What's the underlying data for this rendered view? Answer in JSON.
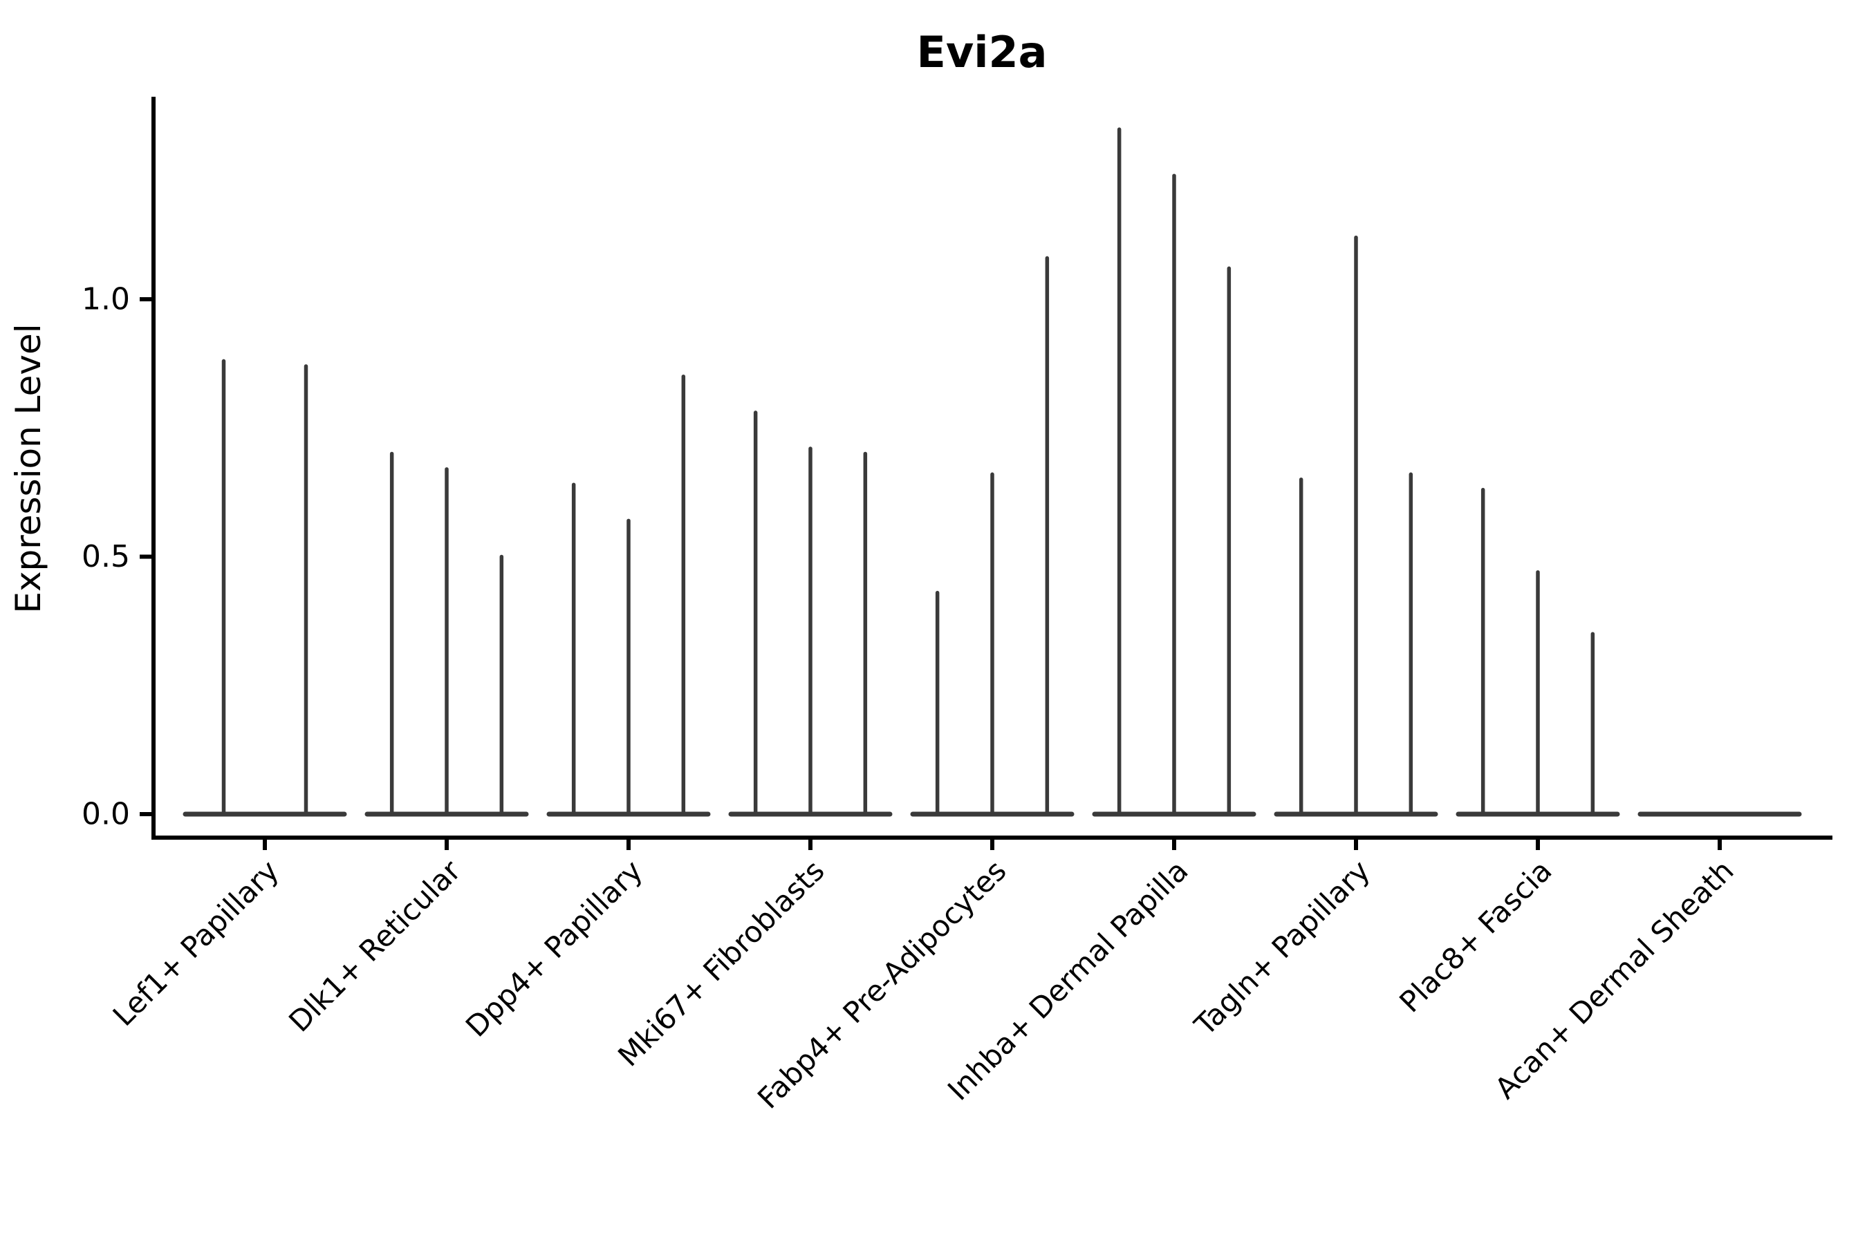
{
  "chart_data": {
    "type": "violin",
    "title": "Evi2a",
    "xlabel": "",
    "ylabel": "Expression Level",
    "ylim": [
      -0.05,
      1.39
    ],
    "yticks": [
      0.0,
      0.5,
      1.0
    ],
    "ytick_labels": [
      "0.0",
      "0.5",
      "1.0"
    ],
    "grid": false,
    "legend": "none",
    "x_tick_rotation_deg": 45,
    "violin_shape_note": "each violin is collapsed at 0 (flat body on baseline) with a thin vertical tail rising to its maximum expression value",
    "categories": [
      "Lef1+ Papillary",
      "Dlk1+ Reticular",
      "Dpp4+ Papillary",
      "Mki67+ Fibroblasts",
      "Fabp4+ Pre-Adipocytes",
      "Inhba+ Dermal Papilla",
      "Tagln+ Papillary",
      "Plac8+ Fascia",
      "Acan+ Dermal Sheath"
    ],
    "groups": [
      {
        "category": "Lef1+ Papillary",
        "violin_maxima": [
          0.88,
          0.87
        ]
      },
      {
        "category": "Dlk1+ Reticular",
        "violin_maxima": [
          0.7,
          0.67,
          0.5
        ]
      },
      {
        "category": "Dpp4+ Papillary",
        "violin_maxima": [
          0.64,
          0.57,
          0.85
        ]
      },
      {
        "category": "Mki67+ Fibroblasts",
        "violin_maxima": [
          0.78,
          0.71,
          0.7
        ]
      },
      {
        "category": "Fabp4+ Pre-Adipocytes",
        "violin_maxima": [
          0.43,
          0.66,
          1.08
        ]
      },
      {
        "category": "Inhba+ Dermal Papilla",
        "violin_maxima": [
          1.33,
          1.24,
          1.06
        ]
      },
      {
        "category": "Tagln+ Papillary",
        "violin_maxima": [
          0.65,
          1.12,
          0.66
        ]
      },
      {
        "category": "Plac8+ Fascia",
        "violin_maxima": [
          0.63,
          0.47,
          0.35
        ]
      },
      {
        "category": "Acan+ Dermal Sheath",
        "violin_maxima": [
          0.0,
          0.0,
          0.0
        ]
      }
    ]
  },
  "style": {
    "violin_color": "#3a3a3a",
    "axis_color": "#000000",
    "text_color": "#000000",
    "background": "#ffffff"
  }
}
